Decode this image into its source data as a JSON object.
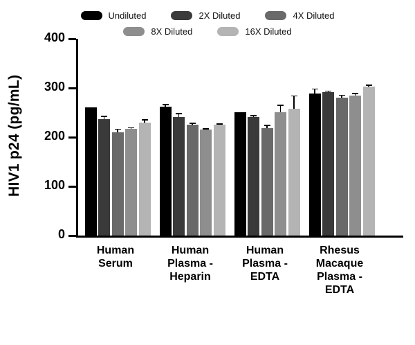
{
  "chart_data": {
    "type": "bar",
    "title": "",
    "ylabel": "HIV1 p24 (pg/mL)",
    "xlabel": "",
    "ylim": [
      0,
      400
    ],
    "yticks": [
      0,
      100,
      200,
      300,
      400
    ],
    "grid": false,
    "legend_position": "top",
    "categories": [
      "Human Serum",
      "Human Plasma - Heparin",
      "Human Plasma - EDTA",
      "Rhesus Macaque Plasma - EDTA"
    ],
    "category_label_lines": [
      [
        "Human",
        "Serum"
      ],
      [
        "Human",
        "Plasma -",
        "Heparin"
      ],
      [
        "Human",
        "Plasma -",
        "EDTA"
      ],
      [
        "Rhesus",
        "Macaque",
        "Plasma -",
        "EDTA"
      ]
    ],
    "series": [
      {
        "name": "Undiluted",
        "color": "#000000",
        "values": [
          260,
          262,
          251,
          289
        ],
        "errors": [
          0,
          5,
          0,
          10
        ]
      },
      {
        "name": "2X Diluted",
        "color": "#3a3a3a",
        "values": [
          237,
          241,
          241,
          292
        ],
        "errors": [
          6,
          8,
          4,
          3
        ]
      },
      {
        "name": "4X Diluted",
        "color": "#696969",
        "values": [
          210,
          226,
          218,
          281
        ],
        "errors": [
          7,
          3,
          7,
          5
        ]
      },
      {
        "name": "8X Diluted",
        "color": "#8e8e8e",
        "values": [
          217,
          215,
          251,
          285
        ],
        "errors": [
          3,
          3,
          15,
          5
        ]
      },
      {
        "name": "16X Diluted",
        "color": "#b4b4b4",
        "values": [
          230,
          225,
          258,
          303
        ],
        "errors": [
          6,
          3,
          27,
          4
        ]
      }
    ]
  }
}
